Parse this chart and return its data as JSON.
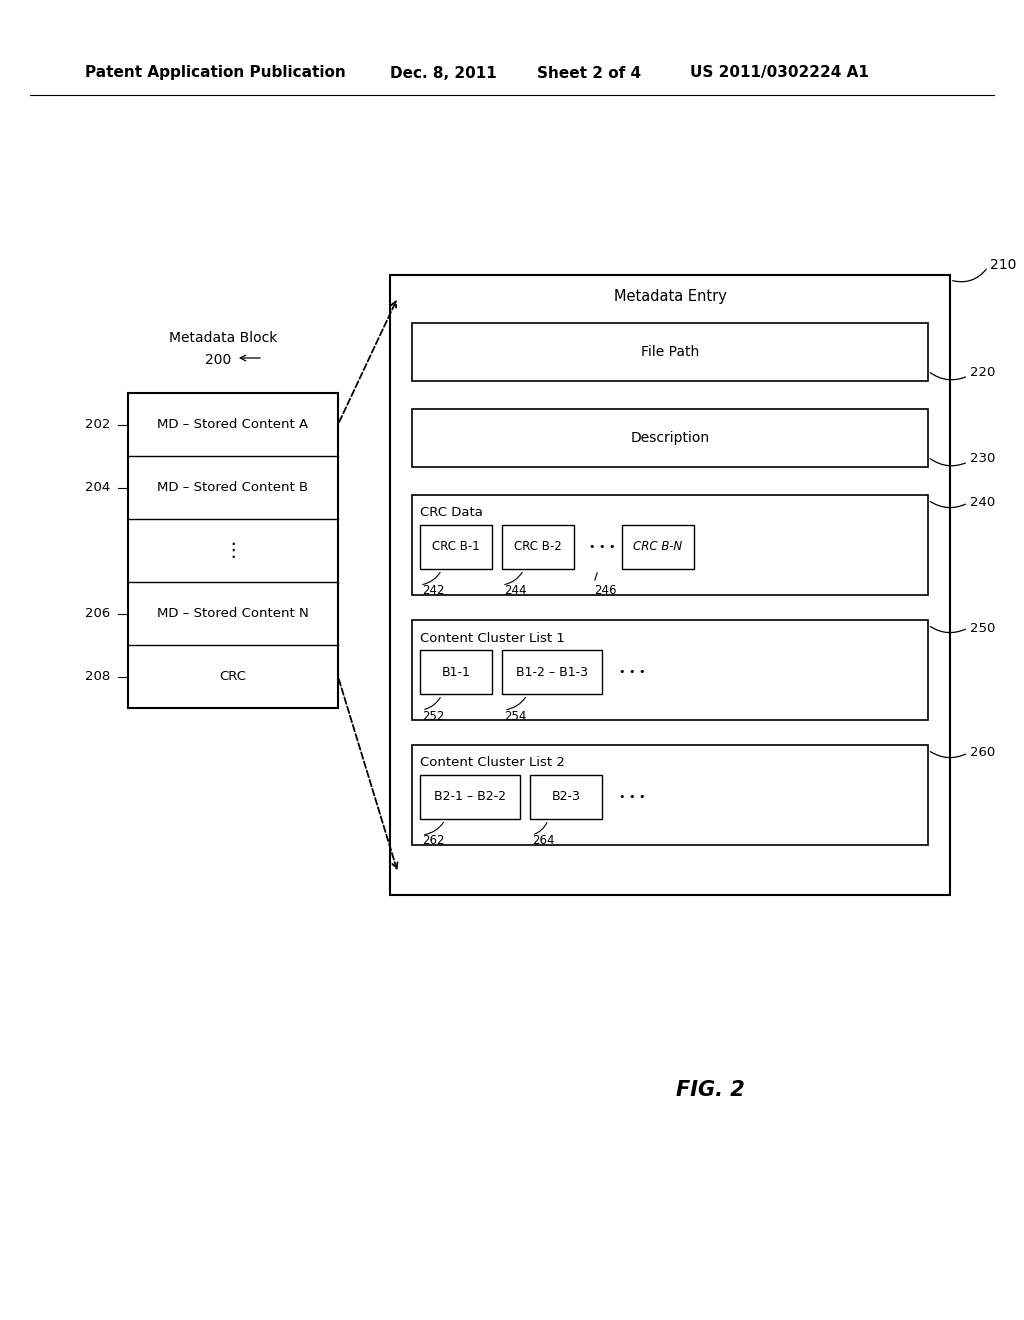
{
  "bg_color": "#ffffff",
  "header_text": "Patent Application Publication",
  "header_date": "Dec. 8, 2011",
  "header_sheet": "Sheet 2 of 4",
  "header_patent": "US 2011/0302224 A1",
  "fig_label": "FIG. 2"
}
